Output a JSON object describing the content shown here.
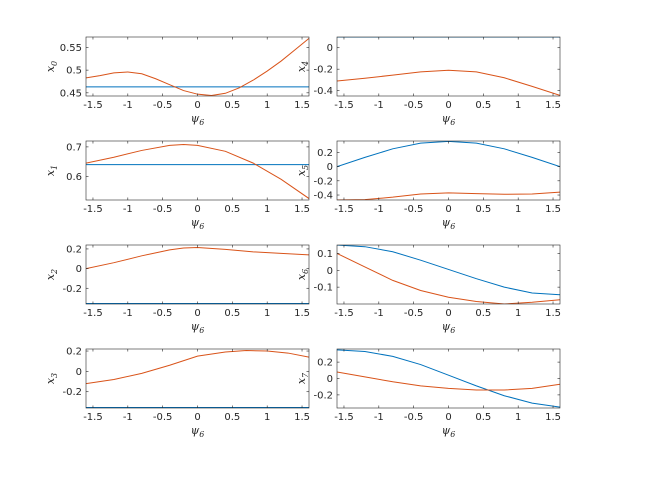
{
  "chart_data": [
    {
      "type": "line",
      "xlabel": "ψ",
      "xlabel_sub": "6",
      "ylabel": "x",
      "ylabel_sub": "0",
      "xlim": [
        -1.6,
        1.6
      ],
      "ylim": [
        0.443,
        0.573
      ],
      "xticks": [
        -1.5,
        -1,
        -0.5,
        0,
        0.5,
        1,
        1.5
      ],
      "xtick_labels": [
        "-1.5",
        "-1",
        "-0.5",
        "0",
        "0.5",
        "1",
        "1.5"
      ],
      "yticks": [
        0.45,
        0.5,
        0.55
      ],
      "ytick_labels": [
        "0.45",
        "0.5",
        "0.55"
      ],
      "series": [
        {
          "color": "#0072BD",
          "x": [
            -1.6,
            1.6
          ],
          "y": [
            0.463,
            0.463
          ]
        },
        {
          "color": "#D95319",
          "x": [
            -1.6,
            -1.4,
            -1.2,
            -1.0,
            -0.8,
            -0.6,
            -0.4,
            -0.2,
            0,
            0.2,
            0.4,
            0.6,
            0.8,
            1.0,
            1.2,
            1.4,
            1.6
          ],
          "y": [
            0.483,
            0.488,
            0.494,
            0.496,
            0.492,
            0.481,
            0.468,
            0.455,
            0.447,
            0.444,
            0.449,
            0.461,
            0.478,
            0.498,
            0.52,
            0.545,
            0.57
          ]
        }
      ]
    },
    {
      "type": "line",
      "xlabel": "ψ",
      "xlabel_sub": "6",
      "ylabel": "x",
      "ylabel_sub": "4",
      "xlim": [
        -1.6,
        1.6
      ],
      "ylim": [
        -0.45,
        0.1
      ],
      "xticks": [
        -1.5,
        -1,
        -0.5,
        0,
        0.5,
        1,
        1.5
      ],
      "xtick_labels": [
        "-1.5",
        "-1",
        "-0.5",
        "0",
        "0.5",
        "1",
        "1.5"
      ],
      "yticks": [
        -0.4,
        -0.2,
        0
      ],
      "ytick_labels": [
        "-0.4",
        "-0.2",
        "0"
      ],
      "series": [
        {
          "color": "#0072BD",
          "x": [
            -1.6,
            1.6
          ],
          "y": [
            0.1,
            0.1
          ]
        },
        {
          "color": "#D95319",
          "x": [
            -1.6,
            -1.2,
            -0.8,
            -0.4,
            0,
            0.4,
            0.8,
            1.2,
            1.6
          ],
          "y": [
            -0.31,
            -0.285,
            -0.255,
            -0.225,
            -0.21,
            -0.225,
            -0.28,
            -0.36,
            -0.445
          ]
        }
      ]
    },
    {
      "type": "line",
      "xlabel": "ψ",
      "xlabel_sub": "6",
      "ylabel": "x",
      "ylabel_sub": "1",
      "xlim": [
        -1.6,
        1.6
      ],
      "ylim": [
        0.52,
        0.72
      ],
      "xticks": [
        -1.5,
        -1,
        -0.5,
        0,
        0.5,
        1,
        1.5
      ],
      "xtick_labels": [
        "-1.5",
        "-1",
        "-0.5",
        "0",
        "0.5",
        "1",
        "1.5"
      ],
      "yticks": [
        0.6,
        0.7
      ],
      "ytick_labels": [
        "0.6",
        "0.7"
      ],
      "series": [
        {
          "color": "#0072BD",
          "x": [
            -1.6,
            1.6
          ],
          "y": [
            0.64,
            0.64
          ]
        },
        {
          "color": "#D95319",
          "x": [
            -1.6,
            -1.2,
            -0.8,
            -0.4,
            -0.2,
            0,
            0.4,
            0.8,
            1.2,
            1.6
          ],
          "y": [
            0.645,
            0.665,
            0.688,
            0.705,
            0.708,
            0.705,
            0.685,
            0.645,
            0.59,
            0.525
          ]
        }
      ]
    },
    {
      "type": "line",
      "xlabel": "ψ",
      "xlabel_sub": "6",
      "ylabel": "x",
      "ylabel_sub": "5",
      "xlim": [
        -1.6,
        1.6
      ],
      "ylim": [
        -0.47,
        0.36
      ],
      "xticks": [
        -1.5,
        -1,
        -0.5,
        0,
        0.5,
        1,
        1.5
      ],
      "xtick_labels": [
        "-1.5",
        "-1",
        "-0.5",
        "0",
        "0.5",
        "1",
        "1.5"
      ],
      "yticks": [
        -0.4,
        -0.2,
        0,
        0.2
      ],
      "ytick_labels": [
        "-0.4",
        "-0.2",
        "0",
        "0.2"
      ],
      "series": [
        {
          "color": "#0072BD",
          "x": [
            -1.6,
            -1.2,
            -0.8,
            -0.4,
            0,
            0.4,
            0.8,
            1.2,
            1.6
          ],
          "y": [
            0,
            0.13,
            0.25,
            0.33,
            0.355,
            0.33,
            0.25,
            0.13,
            0
          ]
        },
        {
          "color": "#D95319",
          "x": [
            -1.6,
            -1.2,
            -0.8,
            -0.4,
            0,
            0.4,
            0.8,
            1.2,
            1.6
          ],
          "y": [
            -0.47,
            -0.465,
            -0.43,
            -0.385,
            -0.37,
            -0.38,
            -0.39,
            -0.385,
            -0.36
          ]
        }
      ]
    },
    {
      "type": "line",
      "xlabel": "ψ",
      "xlabel_sub": "6",
      "ylabel": "x",
      "ylabel_sub": "2",
      "xlim": [
        -1.6,
        1.6
      ],
      "ylim": [
        -0.36,
        0.24
      ],
      "xticks": [
        -1.5,
        -1,
        -0.5,
        0,
        0.5,
        1,
        1.5
      ],
      "xtick_labels": [
        "-1.5",
        "-1",
        "-0.5",
        "0",
        "0.5",
        "1",
        "1.5"
      ],
      "yticks": [
        -0.2,
        0,
        0.2
      ],
      "ytick_labels": [
        "-0.2",
        "0",
        "0.2"
      ],
      "series": [
        {
          "color": "#0072BD",
          "x": [
            -1.6,
            1.6
          ],
          "y": [
            -0.355,
            -0.355
          ]
        },
        {
          "color": "#D95319",
          "x": [
            -1.6,
            -1.2,
            -0.8,
            -0.4,
            -0.2,
            0,
            0.4,
            0.8,
            1.2,
            1.6
          ],
          "y": [
            0,
            0.06,
            0.13,
            0.19,
            0.21,
            0.215,
            0.195,
            0.17,
            0.155,
            0.14
          ]
        }
      ]
    },
    {
      "type": "line",
      "xlabel": "ψ",
      "xlabel_sub": "6",
      "ylabel": "x",
      "ylabel_sub": "6",
      "xlim": [
        -1.6,
        1.6
      ],
      "ylim": [
        -0.2,
        0.15
      ],
      "xticks": [
        -1.5,
        -1,
        -0.5,
        0,
        0.5,
        1,
        1.5
      ],
      "xtick_labels": [
        "-1.5",
        "-1",
        "-0.5",
        "0",
        "0.5",
        "1",
        "1.5"
      ],
      "yticks": [
        -0.1,
        0,
        0.1
      ],
      "ytick_labels": [
        "-0.1",
        "0",
        "0.1"
      ],
      "series": [
        {
          "color": "#0072BD",
          "x": [
            -1.6,
            -1.2,
            -0.8,
            -0.4,
            0,
            0.4,
            0.8,
            1.2,
            1.6
          ],
          "y": [
            0.15,
            0.14,
            0.11,
            0.06,
            0.005,
            -0.05,
            -0.1,
            -0.135,
            -0.145
          ]
        },
        {
          "color": "#D95319",
          "x": [
            -1.6,
            -1.2,
            -0.8,
            -0.4,
            0,
            0.4,
            0.8,
            1.2,
            1.6
          ],
          "y": [
            0.1,
            0.02,
            -0.06,
            -0.12,
            -0.16,
            -0.185,
            -0.2,
            -0.19,
            -0.175
          ]
        }
      ]
    },
    {
      "type": "line",
      "xlabel": "ψ",
      "xlabel_sub": "6",
      "ylabel": "x",
      "ylabel_sub": "3",
      "xlim": [
        -1.6,
        1.6
      ],
      "ylim": [
        -0.36,
        0.22
      ],
      "xticks": [
        -1.5,
        -1,
        -0.5,
        0,
        0.5,
        1,
        1.5
      ],
      "xtick_labels": [
        "-1.5",
        "-1",
        "-0.5",
        "0",
        "0.5",
        "1",
        "1.5"
      ],
      "yticks": [
        -0.2,
        0,
        0.2
      ],
      "ytick_labels": [
        "-0.2",
        "0",
        "0.2"
      ],
      "series": [
        {
          "color": "#0072BD",
          "x": [
            -1.6,
            1.6
          ],
          "y": [
            -0.355,
            -0.355
          ]
        },
        {
          "color": "#D95319",
          "x": [
            -1.6,
            -1.2,
            -0.8,
            -0.4,
            0,
            0.4,
            0.7,
            1.0,
            1.3,
            1.6
          ],
          "y": [
            -0.12,
            -0.08,
            -0.02,
            0.06,
            0.15,
            0.19,
            0.205,
            0.2,
            0.18,
            0.14
          ]
        }
      ]
    },
    {
      "type": "line",
      "xlabel": "ψ",
      "xlabel_sub": "6",
      "ylabel": "x",
      "ylabel_sub": "7",
      "xlim": [
        -1.6,
        1.6
      ],
      "ylim": [
        -0.36,
        0.36
      ],
      "xticks": [
        -1.5,
        -1,
        -0.5,
        0,
        0.5,
        1,
        1.5
      ],
      "xtick_labels": [
        "-1.5",
        "-1",
        "-0.5",
        "0",
        "0.5",
        "1",
        "1.5"
      ],
      "yticks": [
        -0.2,
        0,
        0.2
      ],
      "ytick_labels": [
        "-0.2",
        "0",
        "0.2"
      ],
      "series": [
        {
          "color": "#0072BD",
          "x": [
            -1.6,
            -1.2,
            -0.8,
            -0.4,
            0,
            0.4,
            0.8,
            1.2,
            1.6
          ],
          "y": [
            0.35,
            0.33,
            0.27,
            0.17,
            0.04,
            -0.09,
            -0.21,
            -0.3,
            -0.35
          ]
        },
        {
          "color": "#D95319",
          "x": [
            -1.6,
            -1.2,
            -0.8,
            -0.4,
            0,
            0.4,
            0.8,
            1.2,
            1.6
          ],
          "y": [
            0.08,
            0.02,
            -0.04,
            -0.09,
            -0.12,
            -0.14,
            -0.14,
            -0.12,
            -0.07
          ]
        }
      ]
    }
  ]
}
